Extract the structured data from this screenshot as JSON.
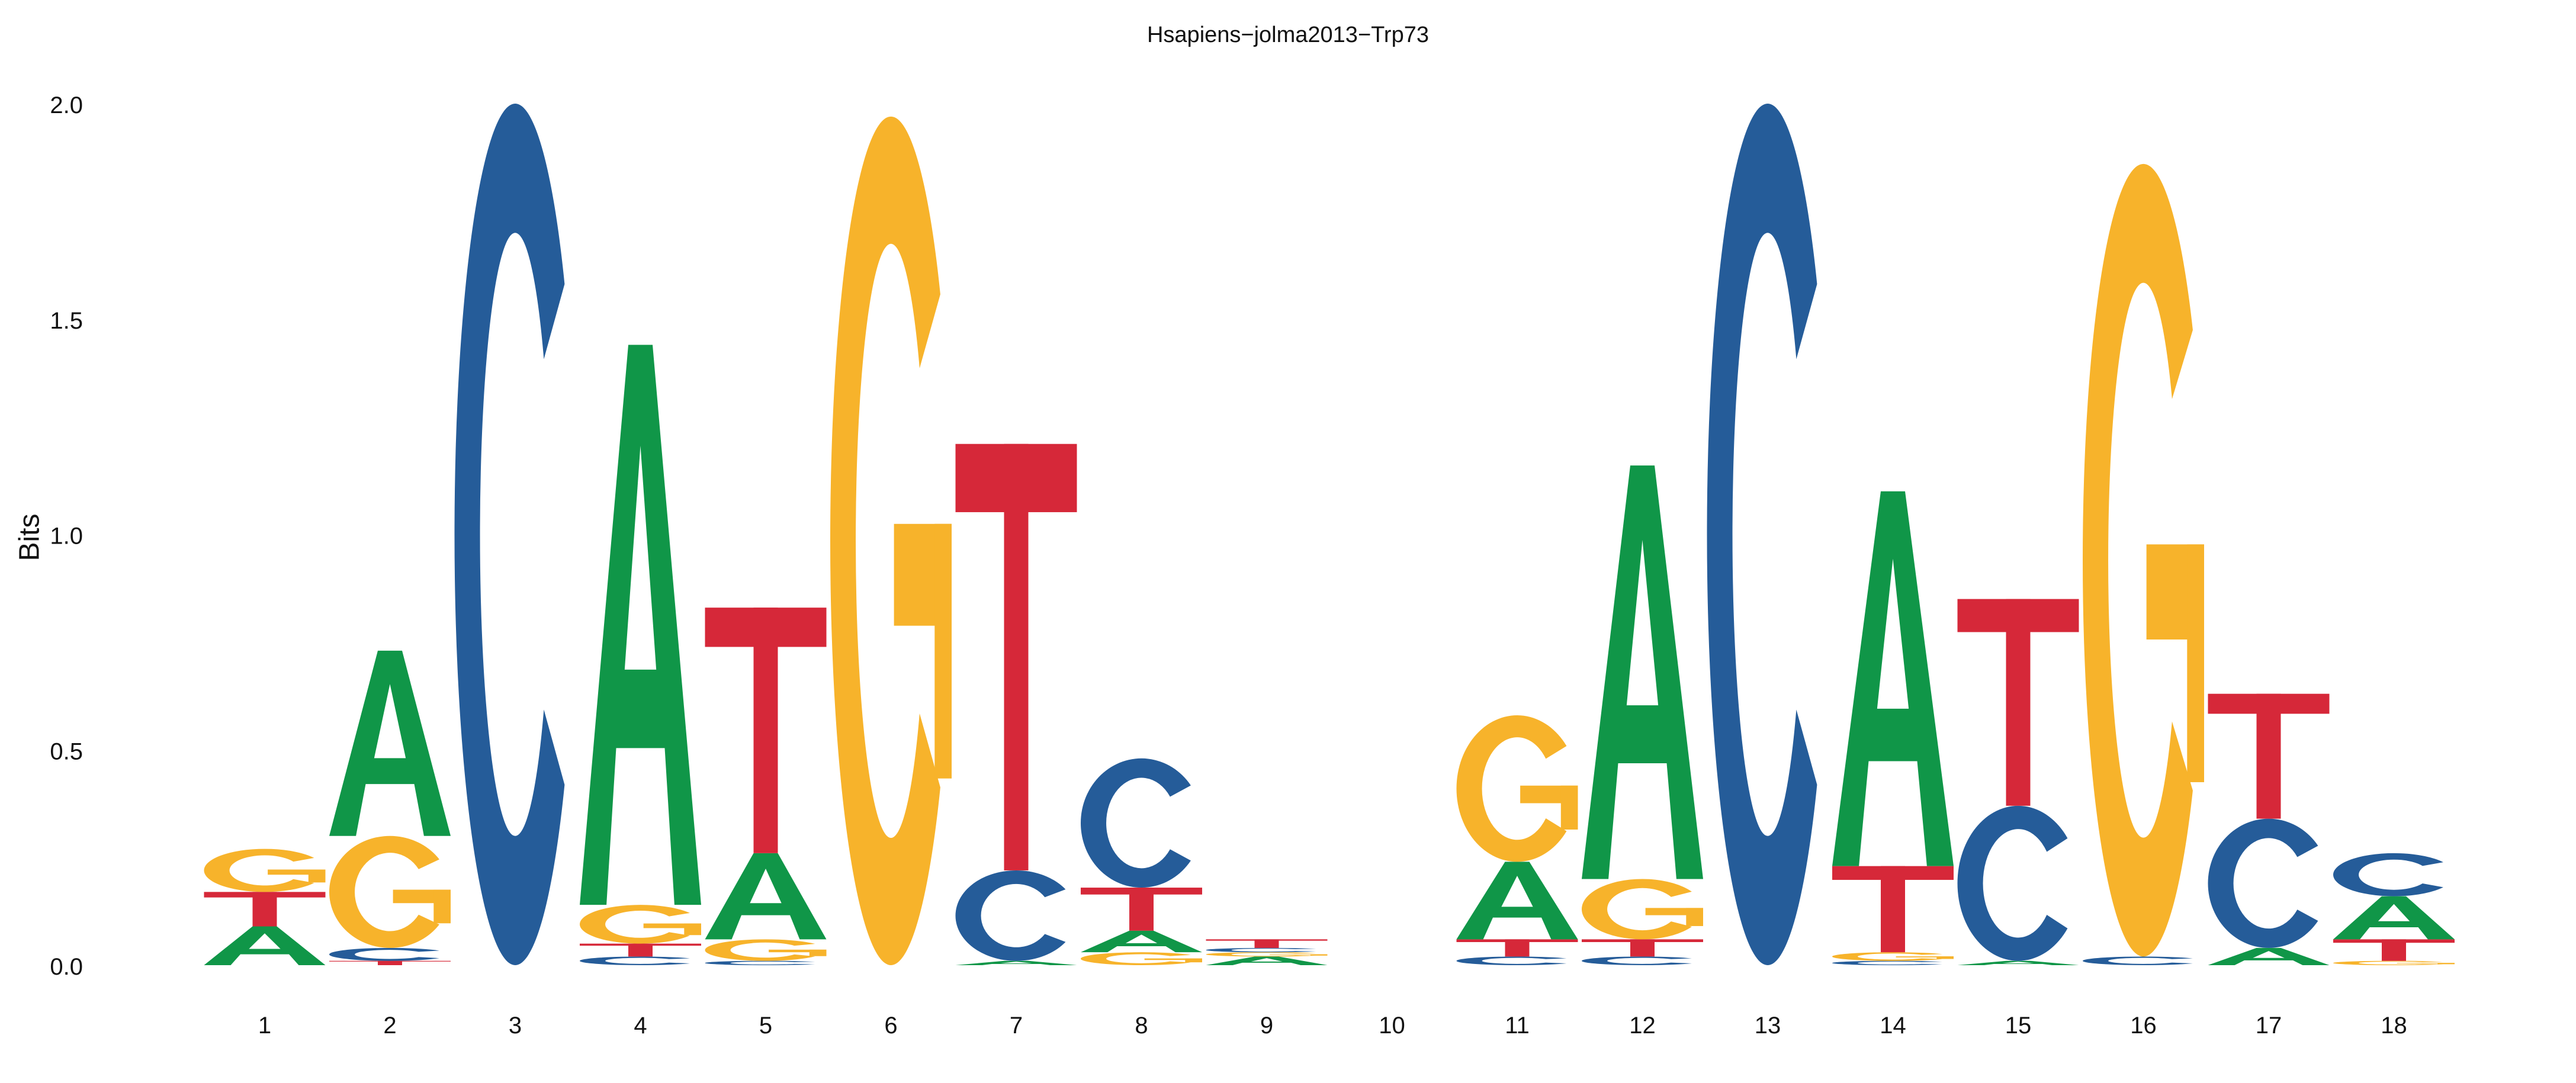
{
  "chart_data": {
    "type": "sequence-logo",
    "title": "Hsapiens−jolma2013−Trp73",
    "ylabel": "Bits",
    "xlabel": "",
    "ylim": [
      0,
      2.0
    ],
    "y_ticks": [
      "0.0",
      "0.5",
      "1.0",
      "1.5",
      "2.0"
    ],
    "y_tick_values": [
      0,
      0.5,
      1.0,
      1.5,
      2.0
    ],
    "positions": [
      "1",
      "2",
      "3",
      "4",
      "5",
      "6",
      "7",
      "8",
      "9",
      "10",
      "11",
      "12",
      "13",
      "14",
      "15",
      "16",
      "17",
      "18"
    ],
    "colors": {
      "A": "#109648",
      "C": "#255C99",
      "G": "#F7B32B",
      "T": "#D62839"
    },
    "stacks": [
      [
        [
          "A",
          0.09
        ],
        [
          "T",
          0.08
        ],
        [
          "G",
          0.1
        ]
      ],
      [
        [
          "T",
          0.01
        ],
        [
          "C",
          0.03
        ],
        [
          "G",
          0.26
        ],
        [
          "A",
          0.43
        ]
      ],
      [
        [
          "C",
          2.0
        ]
      ],
      [
        [
          "C",
          0.02
        ],
        [
          "T",
          0.03
        ],
        [
          "G",
          0.09
        ],
        [
          "A",
          1.3
        ]
      ],
      [
        [
          "C",
          0.01
        ],
        [
          "G",
          0.05
        ],
        [
          "A",
          0.2
        ],
        [
          "T",
          0.57
        ]
      ],
      [
        [
          "G",
          1.97
        ]
      ],
      [
        [
          "A",
          0.01
        ],
        [
          "C",
          0.21
        ],
        [
          "T",
          0.99
        ]
      ],
      [
        [
          "G",
          0.03
        ],
        [
          "A",
          0.05
        ],
        [
          "T",
          0.1
        ],
        [
          "C",
          0.3
        ]
      ],
      [
        [
          "A",
          0.02
        ],
        [
          "G",
          0.01
        ],
        [
          "C",
          0.01
        ],
        [
          "T",
          0.02
        ]
      ],
      [],
      [
        [
          "C",
          0.02
        ],
        [
          "T",
          0.04
        ],
        [
          "A",
          0.18
        ],
        [
          "G",
          0.34
        ]
      ],
      [
        [
          "C",
          0.02
        ],
        [
          "T",
          0.04
        ],
        [
          "G",
          0.14
        ],
        [
          "A",
          0.96
        ]
      ],
      [
        [
          "C",
          2.0
        ]
      ],
      [
        [
          "C",
          0.01
        ],
        [
          "G",
          0.02
        ],
        [
          "T",
          0.2
        ],
        [
          "A",
          0.87
        ]
      ],
      [
        [
          "A",
          0.01
        ],
        [
          "C",
          0.36
        ],
        [
          "T",
          0.48
        ]
      ],
      [
        [
          "C",
          0.02
        ],
        [
          "G",
          1.84
        ]
      ],
      [
        [
          "A",
          0.04
        ],
        [
          "C",
          0.3
        ],
        [
          "T",
          0.29
        ]
      ],
      [
        [
          "G",
          0.01
        ],
        [
          "T",
          0.05
        ],
        [
          "A",
          0.1
        ],
        [
          "C",
          0.1
        ]
      ]
    ]
  }
}
